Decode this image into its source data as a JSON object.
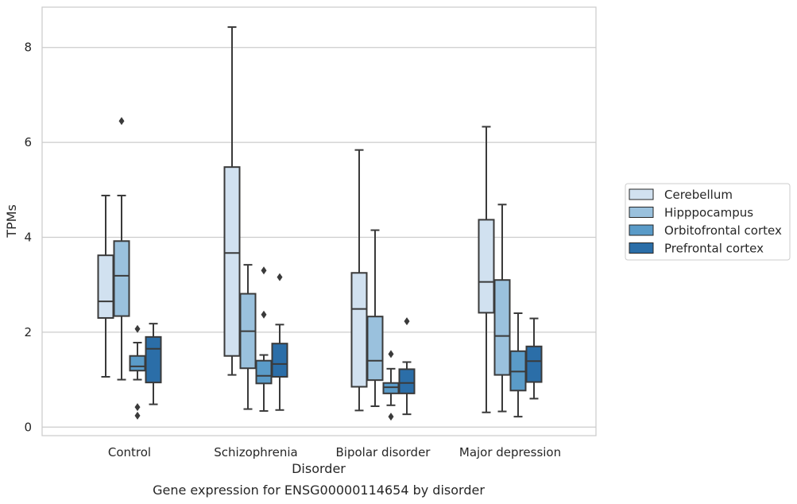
{
  "caption": "Gene expression for ENSG00000114654 by disorder",
  "chart_data": {
    "type": "box",
    "xlabel": "Disorder",
    "ylabel": "TPMs",
    "ylim": [
      -0.18,
      8.85
    ],
    "yticks": [
      0,
      2,
      4,
      6,
      8
    ],
    "grid": "horizontal",
    "legend_position": "right",
    "categories": [
      "Control",
      "Schizophrenia",
      "Bipolar disorder",
      "Major depression"
    ],
    "series": [
      {
        "name": "Cerebellum",
        "color": "#d1e1f0",
        "boxes": [
          {
            "whisker_low": 1.06,
            "q1": 2.3,
            "median": 2.65,
            "q3": 3.62,
            "whisker_high": 4.88,
            "outliers": []
          },
          {
            "whisker_low": 1.1,
            "q1": 1.5,
            "median": 3.67,
            "q3": 5.48,
            "whisker_high": 8.43,
            "outliers": []
          },
          {
            "whisker_low": 0.35,
            "q1": 0.85,
            "median": 2.49,
            "q3": 3.25,
            "whisker_high": 5.84,
            "outliers": []
          },
          {
            "whisker_low": 0.31,
            "q1": 2.41,
            "median": 3.06,
            "q3": 4.37,
            "whisker_high": 6.33,
            "outliers": []
          }
        ]
      },
      {
        "name": "Hipppocampus",
        "color": "#9ac1dd",
        "boxes": [
          {
            "whisker_low": 1.0,
            "q1": 2.34,
            "median": 3.19,
            "q3": 3.92,
            "whisker_high": 4.88,
            "outliers": [
              6.45
            ]
          },
          {
            "whisker_low": 0.38,
            "q1": 1.24,
            "median": 2.02,
            "q3": 2.81,
            "whisker_high": 3.42,
            "outliers": []
          },
          {
            "whisker_low": 0.44,
            "q1": 0.99,
            "median": 1.4,
            "q3": 2.33,
            "whisker_high": 4.15,
            "outliers": []
          },
          {
            "whisker_low": 0.33,
            "q1": 1.1,
            "median": 1.92,
            "q3": 3.1,
            "whisker_high": 4.69,
            "outliers": []
          }
        ]
      },
      {
        "name": "Orbitofrontal cortex",
        "color": "#5a9bc8",
        "boxes": [
          {
            "whisker_low": 1.0,
            "q1": 1.19,
            "median": 1.28,
            "q3": 1.5,
            "whisker_high": 1.78,
            "outliers": [
              2.07,
              0.42,
              0.24
            ]
          },
          {
            "whisker_low": 0.34,
            "q1": 0.92,
            "median": 1.08,
            "q3": 1.4,
            "whisker_high": 1.52,
            "outliers": [
              3.3,
              2.37
            ]
          },
          {
            "whisker_low": 0.46,
            "q1": 0.71,
            "median": 0.84,
            "q3": 0.93,
            "whisker_high": 1.23,
            "outliers": [
              1.54,
              0.22
            ]
          },
          {
            "whisker_low": 0.22,
            "q1": 0.77,
            "median": 1.17,
            "q3": 1.6,
            "whisker_high": 2.4,
            "outliers": []
          }
        ]
      },
      {
        "name": "Prefrontal cortex",
        "color": "#2b6ea8",
        "boxes": [
          {
            "whisker_low": 0.48,
            "q1": 0.94,
            "median": 1.65,
            "q3": 1.9,
            "whisker_high": 2.18,
            "outliers": []
          },
          {
            "whisker_low": 0.36,
            "q1": 1.06,
            "median": 1.33,
            "q3": 1.76,
            "whisker_high": 2.16,
            "outliers": [
              3.16
            ]
          },
          {
            "whisker_low": 0.27,
            "q1": 0.71,
            "median": 0.93,
            "q3": 1.22,
            "whisker_high": 1.37,
            "outliers": [
              2.23
            ]
          },
          {
            "whisker_low": 0.6,
            "q1": 0.95,
            "median": 1.39,
            "q3": 1.7,
            "whisker_high": 2.29,
            "outliers": []
          }
        ]
      }
    ]
  }
}
